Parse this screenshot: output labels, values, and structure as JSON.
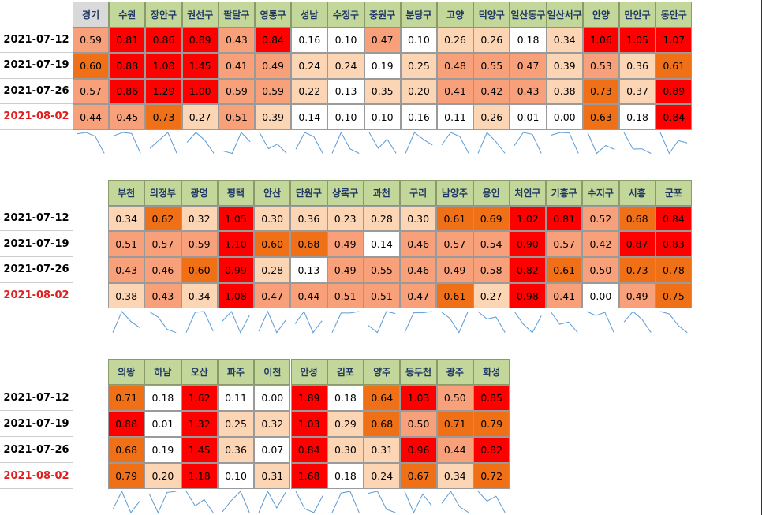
{
  "tables": [
    {
      "dates": [
        "2021-07-12",
        "2021-07-19",
        "2021-07-26",
        "2021-08-02"
      ],
      "columns": [
        "경기",
        "수원",
        "장안구",
        "권선구",
        "팔달구",
        "영통구",
        "성남",
        "수정구",
        "중원구",
        "분당구",
        "고양",
        "덕양구",
        "일산동구",
        "일산서구",
        "안양",
        "만안구",
        "동안구"
      ],
      "rows": [
        [
          "0.59",
          "0.81",
          "0.86",
          "0.89",
          "0.43",
          "0.84",
          "0.16",
          "0.10",
          "0.47",
          "0.10",
          "0.26",
          "0.26",
          "0.18",
          "0.34",
          "1.06",
          "1.05",
          "1.07"
        ],
        [
          "0.60",
          "0.88",
          "1.08",
          "1.45",
          "0.41",
          "0.49",
          "0.24",
          "0.24",
          "0.19",
          "0.25",
          "0.48",
          "0.55",
          "0.47",
          "0.39",
          "0.53",
          "0.36",
          "0.61"
        ],
        [
          "0.57",
          "0.86",
          "1.29",
          "1.00",
          "0.59",
          "0.59",
          "0.22",
          "0.13",
          "0.35",
          "0.20",
          "0.41",
          "0.42",
          "0.43",
          "0.38",
          "0.73",
          "0.37",
          "0.89"
        ],
        [
          "0.44",
          "0.45",
          "0.73",
          "0.27",
          "0.51",
          "0.39",
          "0.14",
          "0.10",
          "0.10",
          "0.16",
          "0.11",
          "0.26",
          "0.01",
          "0.00",
          "0.63",
          "0.18",
          "0.84"
        ]
      ]
    },
    {
      "dates": [
        "2021-07-12",
        "2021-07-19",
        "2021-07-26",
        "2021-08-02"
      ],
      "columns": [
        "부천",
        "의정부",
        "광명",
        "평택",
        "안산",
        "단원구",
        "상록구",
        "과천",
        "구리",
        "남양주",
        "용인",
        "처인구",
        "기흥구",
        "수지구",
        "시흥",
        "군포"
      ],
      "rows": [
        [
          "0.34",
          "0.62",
          "0.32",
          "1.05",
          "0.30",
          "0.36",
          "0.23",
          "0.28",
          "0.30",
          "0.61",
          "0.69",
          "1.02",
          "0.81",
          "0.52",
          "0.68",
          "0.84"
        ],
        [
          "0.51",
          "0.57",
          "0.59",
          "1.10",
          "0.60",
          "0.68",
          "0.49",
          "0.14",
          "0.46",
          "0.57",
          "0.54",
          "0.90",
          "0.57",
          "0.42",
          "0.87",
          "0.83"
        ],
        [
          "0.43",
          "0.46",
          "0.60",
          "0.99",
          "0.28",
          "0.13",
          "0.49",
          "0.55",
          "0.46",
          "0.49",
          "0.58",
          "0.82",
          "0.61",
          "0.50",
          "0.73",
          "0.78"
        ],
        [
          "0.38",
          "0.43",
          "0.34",
          "1.08",
          "0.47",
          "0.44",
          "0.51",
          "0.51",
          "0.47",
          "0.61",
          "0.27",
          "0.98",
          "0.41",
          "0.00",
          "0.49",
          "0.75"
        ]
      ]
    },
    {
      "dates": [
        "2021-07-12",
        "2021-07-19",
        "2021-07-26",
        "2021-08-02"
      ],
      "columns": [
        "의왕",
        "하남",
        "오산",
        "파주",
        "이천",
        "안성",
        "김포",
        "양주",
        "동두천",
        "광주",
        "화성"
      ],
      "rows": [
        [
          "0.71",
          "0.18",
          "1.62",
          "0.11",
          "0.00",
          "1.89",
          "0.18",
          "0.64",
          "1.03",
          "0.50",
          "0.85"
        ],
        [
          "0.88",
          "0.01",
          "1.32",
          "0.25",
          "0.32",
          "1.03",
          "0.29",
          "0.68",
          "0.50",
          "0.71",
          "0.79"
        ],
        [
          "0.68",
          "0.19",
          "1.45",
          "0.36",
          "0.07",
          "0.84",
          "0.30",
          "0.31",
          "0.96",
          "0.44",
          "0.82"
        ],
        [
          "0.79",
          "0.20",
          "1.18",
          "0.10",
          "0.31",
          "1.68",
          "0.18",
          "0.24",
          "0.67",
          "0.34",
          "0.72"
        ]
      ]
    }
  ]
}
